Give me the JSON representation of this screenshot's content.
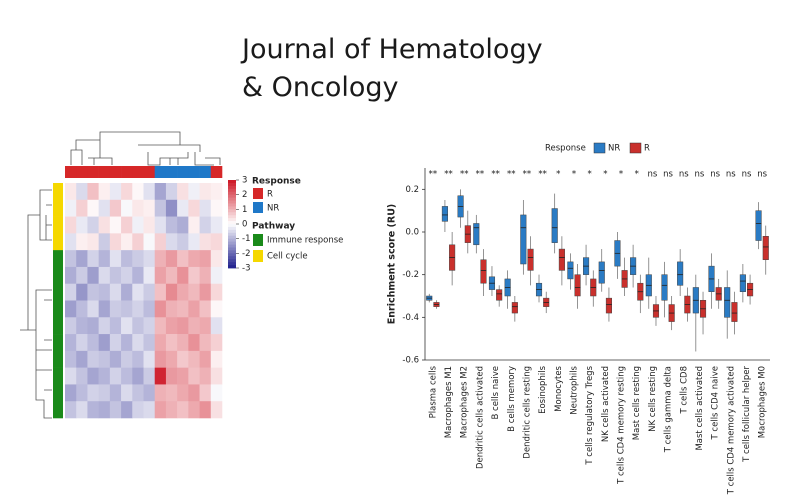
{
  "header": {
    "title_lines": [
      "Journal of Hematology",
      "& Oncology"
    ]
  },
  "chart_data": [
    {
      "type": "heatmap",
      "zlim": [
        -3,
        3
      ],
      "zticks": [
        3,
        2,
        1,
        0,
        -1,
        -2,
        -3
      ],
      "column_legend_title": "Response",
      "column_groups": [
        {
          "name": "R",
          "color": "#d62728"
        },
        {
          "name": "NR",
          "color": "#1f78c8"
        }
      ],
      "columns": [
        "R",
        "R",
        "R",
        "R",
        "R",
        "R",
        "R",
        "R",
        "NR",
        "NR",
        "NR",
        "NR",
        "NR",
        "R"
      ],
      "row_legend_title": "Pathway",
      "row_groups": [
        {
          "name": "Immune response",
          "color": "#1a8a1a"
        },
        {
          "name": "Cell cycle",
          "color": "#f5d800"
        }
      ],
      "rows": [
        "Cell cycle",
        "Cell cycle",
        "Cell cycle",
        "Cell cycle",
        "Immune response",
        "Immune response",
        "Immune response",
        "Immune response",
        "Immune response",
        "Immune response",
        "Immune response",
        "Immune response",
        "Immune response",
        "Immune response"
      ],
      "matrix": [
        [
          0.3,
          -0.5,
          0.8,
          0.2,
          -0.3,
          0.5,
          0.1,
          -0.4,
          -1.2,
          -0.6,
          0.4,
          -0.2,
          0.3,
          0.2
        ],
        [
          -0.2,
          0.6,
          0.1,
          -0.4,
          0.7,
          -0.1,
          0.3,
          0.2,
          -0.8,
          -1.5,
          -0.3,
          0.5,
          -0.4,
          0.1
        ],
        [
          0.5,
          -0.3,
          -0.6,
          0.4,
          0.1,
          0.6,
          -0.2,
          0.3,
          -0.4,
          -0.9,
          -1.1,
          0.2,
          -0.6,
          -0.3
        ],
        [
          -0.4,
          0.2,
          0.3,
          -0.7,
          0.5,
          0.2,
          0.6,
          -0.1,
          0.6,
          -0.5,
          -0.7,
          -0.3,
          0.4,
          0.5
        ],
        [
          -0.8,
          -1.2,
          -0.6,
          -1.0,
          -0.4,
          -0.9,
          -0.7,
          -0.5,
          1.0,
          1.3,
          0.8,
          1.1,
          1.2,
          0.3
        ],
        [
          -1.1,
          -0.7,
          -1.3,
          -0.5,
          -0.8,
          -0.6,
          -1.0,
          -0.3,
          1.2,
          0.9,
          1.4,
          0.7,
          1.0,
          -0.2
        ],
        [
          -0.6,
          -1.4,
          -0.8,
          -0.9,
          -0.5,
          -1.1,
          -0.4,
          -0.7,
          0.8,
          1.5,
          1.1,
          0.9,
          1.3,
          0.5
        ],
        [
          -1.3,
          -0.9,
          -0.5,
          -1.2,
          -0.7,
          -0.8,
          -0.6,
          -0.9,
          1.4,
          1.0,
          0.9,
          1.2,
          0.8,
          0.1
        ],
        [
          -0.7,
          -1.0,
          -1.1,
          -0.6,
          -0.9,
          -0.4,
          -0.8,
          -0.6,
          0.9,
          1.2,
          1.3,
          1.0,
          1.1,
          -0.4
        ],
        [
          -1.0,
          -0.6,
          -0.9,
          -1.3,
          -0.6,
          -1.0,
          -0.5,
          -0.8,
          1.1,
          0.8,
          1.0,
          1.4,
          0.9,
          0.6
        ],
        [
          -0.9,
          -1.2,
          -0.7,
          -0.8,
          -1.1,
          -0.7,
          -0.9,
          -0.4,
          1.3,
          1.1,
          0.7,
          0.9,
          1.2,
          0.2
        ],
        [
          -0.5,
          -0.8,
          -1.2,
          -1.0,
          -0.6,
          -0.9,
          -1.2,
          -0.7,
          2.8,
          1.3,
          1.2,
          0.8,
          1.0,
          0.4
        ],
        [
          -1.2,
          -0.9,
          -0.6,
          -0.7,
          -1.0,
          -0.5,
          -0.8,
          -1.0,
          1.0,
          0.9,
          1.1,
          1.3,
          0.7,
          -0.1
        ],
        [
          -0.8,
          -0.5,
          -1.0,
          -1.1,
          -0.8,
          -1.2,
          -0.6,
          -0.5,
          1.2,
          1.0,
          0.8,
          1.1,
          1.4,
          0.4
        ]
      ]
    },
    {
      "type": "box",
      "ylabel": "Enrichment score (RU)",
      "legend_title": "Response",
      "ylim": [
        -0.6,
        0.3
      ],
      "yticks": [
        0.2,
        {
          "value": 0,
          "label": "0.0"
        },
        -0.2,
        -0.4,
        -0.6
      ],
      "categories": [
        "Plasma cells",
        "Macrophages M1",
        "Macrophages M2",
        "Dendritic cells activated",
        "B cells naive",
        "B cells memory",
        "Dendritic cells resting",
        "Eosinophils",
        "Monocytes",
        "Neutrophils",
        "T cells regulatory  Tregs",
        "NK cells activated",
        "T cells CD4 memory resting",
        "Mast cells resting",
        "NK cells resting",
        "T cells gamma delta",
        "T cells CD8",
        "Mast cells activated",
        "T cells CD4 naive",
        "T cells CD4 memory activated",
        "T cells follicular helper",
        "Macrophages M0"
      ],
      "annotations": [
        "**",
        "**",
        "**",
        "**",
        "**",
        "**",
        "**",
        "**",
        "*",
        "*",
        "*",
        "*",
        "*",
        "*",
        "ns",
        "ns",
        "ns",
        "ns",
        "ns",
        "ns",
        "ns",
        "ns"
      ],
      "series": [
        {
          "name": "NR",
          "color": "#2a7bc4",
          "low": [
            -0.33,
            0.0,
            0.02,
            -0.1,
            -0.3,
            -0.36,
            -0.2,
            -0.33,
            -0.1,
            -0.27,
            -0.25,
            -0.28,
            -0.22,
            -0.26,
            -0.36,
            -0.4,
            -0.3,
            -0.56,
            -0.36,
            -0.5,
            -0.33,
            -0.08
          ],
          "q1": [
            -0.32,
            0.05,
            0.07,
            -0.06,
            -0.27,
            -0.3,
            -0.15,
            -0.3,
            -0.05,
            -0.22,
            -0.2,
            -0.24,
            -0.16,
            -0.2,
            -0.3,
            -0.32,
            -0.25,
            -0.38,
            -0.28,
            -0.4,
            -0.28,
            -0.04
          ],
          "median": [
            -0.31,
            0.08,
            0.12,
            0.02,
            -0.24,
            -0.26,
            0.02,
            -0.27,
            0.02,
            -0.17,
            -0.16,
            -0.18,
            -0.1,
            -0.16,
            -0.25,
            -0.25,
            -0.2,
            -0.32,
            -0.22,
            -0.32,
            -0.23,
            0.04
          ],
          "q3": [
            -0.3,
            0.12,
            0.17,
            0.04,
            -0.21,
            -0.22,
            0.08,
            -0.24,
            0.11,
            -0.14,
            -0.12,
            -0.14,
            -0.04,
            -0.12,
            -0.2,
            -0.2,
            -0.14,
            -0.26,
            -0.16,
            -0.26,
            -0.2,
            0.1
          ],
          "high": [
            -0.29,
            0.15,
            0.2,
            0.08,
            -0.16,
            -0.18,
            0.15,
            -0.2,
            0.18,
            -0.1,
            -0.06,
            -0.08,
            0.0,
            -0.06,
            -0.12,
            -0.14,
            -0.08,
            -0.2,
            -0.1,
            -0.18,
            -0.15,
            0.14
          ]
        },
        {
          "name": "R",
          "color": "#c9302c",
          "low": [
            -0.36,
            -0.25,
            -0.1,
            -0.3,
            -0.35,
            -0.42,
            -0.25,
            -0.38,
            -0.25,
            -0.36,
            -0.35,
            -0.42,
            -0.3,
            -0.38,
            -0.44,
            -0.46,
            -0.42,
            -0.48,
            -0.36,
            -0.48,
            -0.34,
            -0.2
          ],
          "q1": [
            -0.35,
            -0.18,
            -0.05,
            -0.24,
            -0.32,
            -0.38,
            -0.18,
            -0.35,
            -0.18,
            -0.3,
            -0.3,
            -0.38,
            -0.26,
            -0.32,
            -0.4,
            -0.42,
            -0.38,
            -0.4,
            -0.32,
            -0.42,
            -0.3,
            -0.13
          ],
          "median": [
            -0.34,
            -0.12,
            -0.01,
            -0.18,
            -0.29,
            -0.35,
            -0.12,
            -0.33,
            -0.12,
            -0.26,
            -0.26,
            -0.34,
            -0.22,
            -0.28,
            -0.37,
            -0.38,
            -0.34,
            -0.36,
            -0.29,
            -0.38,
            -0.27,
            -0.07
          ],
          "q3": [
            -0.33,
            -0.06,
            0.03,
            -0.13,
            -0.27,
            -0.33,
            -0.08,
            -0.31,
            -0.08,
            -0.2,
            -0.22,
            -0.31,
            -0.18,
            -0.24,
            -0.34,
            -0.34,
            -0.3,
            -0.32,
            -0.26,
            -0.33,
            -0.24,
            -0.02
          ],
          "high": [
            -0.32,
            0.0,
            0.1,
            -0.08,
            -0.25,
            -0.3,
            -0.02,
            -0.28,
            -0.02,
            -0.15,
            -0.18,
            -0.26,
            -0.12,
            -0.2,
            -0.3,
            -0.3,
            -0.26,
            -0.28,
            -0.22,
            -0.28,
            -0.2,
            0.03
          ]
        }
      ]
    }
  ]
}
